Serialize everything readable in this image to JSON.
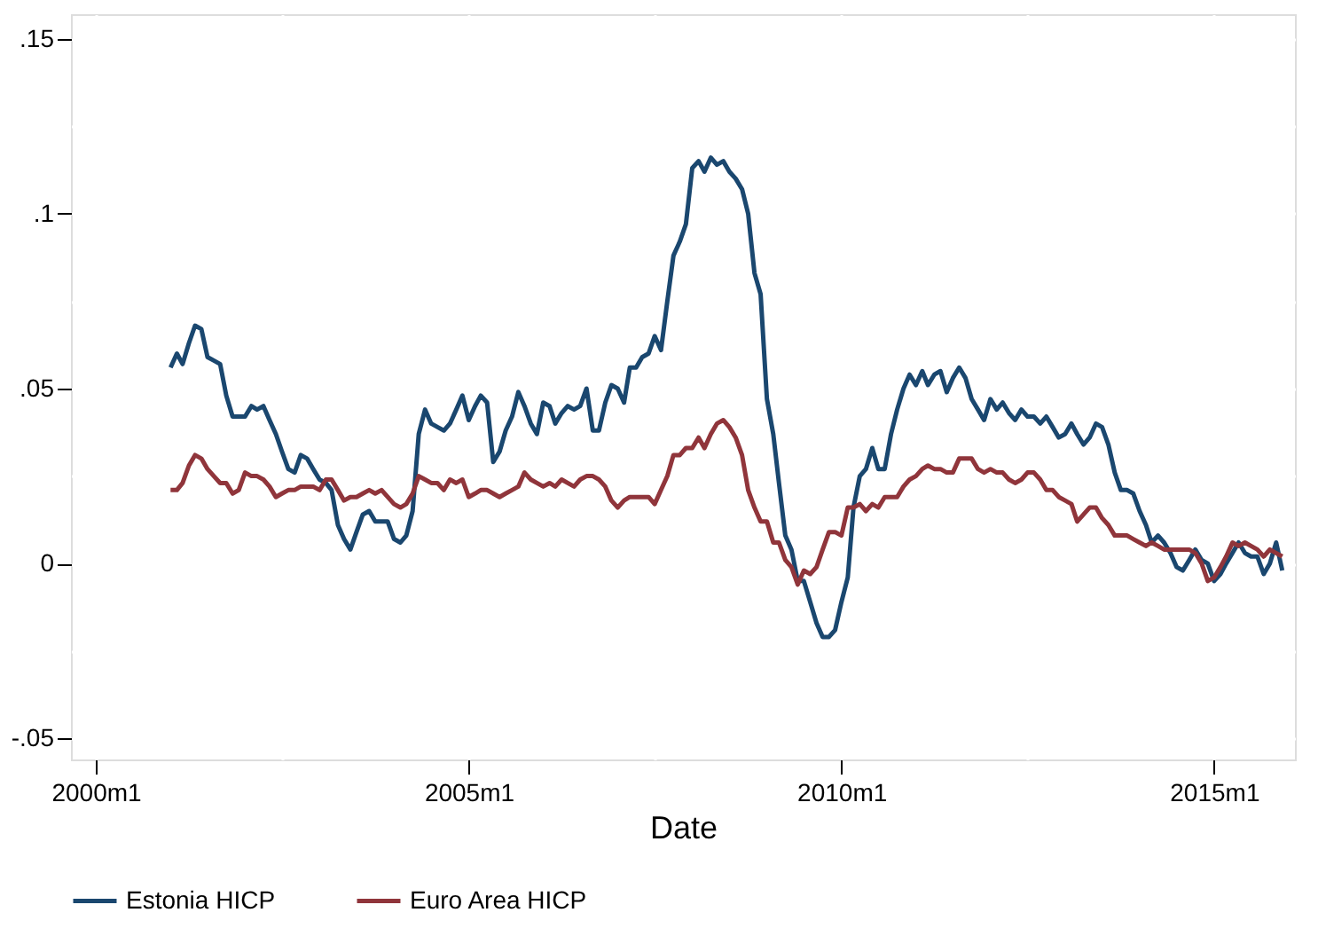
{
  "chart_data": {
    "type": "line",
    "xlabel": "Date",
    "grid": true,
    "legend": "bottom",
    "x": [
      "2001-01",
      "2001-02",
      "2001-03",
      "2001-04",
      "2001-05",
      "2001-06",
      "2001-07",
      "2001-08",
      "2001-09",
      "2001-10",
      "2001-11",
      "2001-12",
      "2002-01",
      "2002-02",
      "2002-03",
      "2002-04",
      "2002-05",
      "2002-06",
      "2002-07",
      "2002-08",
      "2002-09",
      "2002-10",
      "2002-11",
      "2002-12",
      "2003-01",
      "2003-02",
      "2003-03",
      "2003-04",
      "2003-05",
      "2003-06",
      "2003-07",
      "2003-08",
      "2003-09",
      "2003-10",
      "2003-11",
      "2003-12",
      "2004-01",
      "2004-02",
      "2004-03",
      "2004-04",
      "2004-05",
      "2004-06",
      "2004-07",
      "2004-08",
      "2004-09",
      "2004-10",
      "2004-11",
      "2004-12",
      "2005-01",
      "2005-02",
      "2005-03",
      "2005-04",
      "2005-05",
      "2005-06",
      "2005-07",
      "2005-08",
      "2005-09",
      "2005-10",
      "2005-11",
      "2005-12",
      "2006-01",
      "2006-02",
      "2006-03",
      "2006-04",
      "2006-05",
      "2006-06",
      "2006-07",
      "2006-08",
      "2006-09",
      "2006-10",
      "2006-11",
      "2006-12",
      "2007-01",
      "2007-02",
      "2007-03",
      "2007-04",
      "2007-05",
      "2007-06",
      "2007-07",
      "2007-08",
      "2007-09",
      "2007-10",
      "2007-11",
      "2007-12",
      "2008-01",
      "2008-02",
      "2008-03",
      "2008-04",
      "2008-05",
      "2008-06",
      "2008-07",
      "2008-08",
      "2008-09",
      "2008-10",
      "2008-11",
      "2008-12",
      "2009-01",
      "2009-02",
      "2009-03",
      "2009-04",
      "2009-05",
      "2009-06",
      "2009-07",
      "2009-08",
      "2009-09",
      "2009-10",
      "2009-11",
      "2009-12",
      "2010-01",
      "2010-02",
      "2010-03",
      "2010-04",
      "2010-05",
      "2010-06",
      "2010-07",
      "2010-08",
      "2010-09",
      "2010-10",
      "2010-11",
      "2010-12",
      "2011-01",
      "2011-02",
      "2011-03",
      "2011-04",
      "2011-05",
      "2011-06",
      "2011-07",
      "2011-08",
      "2011-09",
      "2011-10",
      "2011-11",
      "2011-12",
      "2012-01",
      "2012-02",
      "2012-03",
      "2012-04",
      "2012-05",
      "2012-06",
      "2012-07",
      "2012-08",
      "2012-09",
      "2012-10",
      "2012-11",
      "2012-12",
      "2013-01",
      "2013-02",
      "2013-03",
      "2013-04",
      "2013-05",
      "2013-06",
      "2013-07",
      "2013-08",
      "2013-09",
      "2013-10",
      "2013-11",
      "2013-12",
      "2014-01",
      "2014-02",
      "2014-03",
      "2014-04",
      "2014-05",
      "2014-06",
      "2014-07",
      "2014-08",
      "2014-09",
      "2014-10",
      "2014-11",
      "2014-12",
      "2015-01",
      "2015-02",
      "2015-03",
      "2015-04",
      "2015-05",
      "2015-06",
      "2015-07",
      "2015-08",
      "2015-09",
      "2015-10",
      "2015-11",
      "2015-12"
    ],
    "xlim": [
      "1999-09",
      "2016-02"
    ],
    "xticks": [
      {
        "value": "2000-01",
        "label": "2000m1"
      },
      {
        "value": "2002-07",
        "label": null
      },
      {
        "value": "2005-01",
        "label": "2005m1"
      },
      {
        "value": "2007-07",
        "label": null
      },
      {
        "value": "2010-01",
        "label": "2010m1"
      },
      {
        "value": "2012-07",
        "label": null
      },
      {
        "value": "2015-01",
        "label": "2015m1"
      }
    ],
    "ylim": [
      -0.056,
      0.157
    ],
    "yticks": [
      {
        "value": -0.05,
        "label": "-.05"
      },
      {
        "value": -0.025,
        "label": null
      },
      {
        "value": 0,
        "label": "0"
      },
      {
        "value": 0.025,
        "label": null
      },
      {
        "value": 0.05,
        "label": ".05"
      },
      {
        "value": 0.075,
        "label": null
      },
      {
        "value": 0.1,
        "label": ".1"
      },
      {
        "value": 0.125,
        "label": null
      },
      {
        "value": 0.15,
        "label": ".15"
      }
    ],
    "series": [
      {
        "name": "Estonia HICP",
        "color": "#1a476f",
        "values": [
          0.056,
          0.06,
          0.057,
          0.063,
          0.068,
          0.067,
          0.059,
          0.058,
          0.057,
          0.048,
          0.042,
          0.042,
          0.042,
          0.045,
          0.044,
          0.045,
          0.041,
          0.037,
          0.032,
          0.027,
          0.026,
          0.031,
          0.03,
          0.027,
          0.024,
          0.023,
          0.021,
          0.011,
          0.007,
          0.004,
          0.009,
          0.014,
          0.015,
          0.012,
          0.012,
          0.012,
          0.007,
          0.006,
          0.008,
          0.015,
          0.037,
          0.044,
          0.04,
          0.039,
          0.038,
          0.04,
          0.044,
          0.048,
          0.041,
          0.045,
          0.048,
          0.046,
          0.029,
          0.032,
          0.038,
          0.042,
          0.049,
          0.045,
          0.04,
          0.037,
          0.046,
          0.045,
          0.04,
          0.043,
          0.045,
          0.044,
          0.045,
          0.05,
          0.038,
          0.038,
          0.046,
          0.051,
          0.05,
          0.046,
          0.056,
          0.056,
          0.059,
          0.06,
          0.065,
          0.061,
          0.075,
          0.088,
          0.092,
          0.097,
          0.113,
          0.115,
          0.112,
          0.116,
          0.114,
          0.115,
          0.112,
          0.11,
          0.107,
          0.1,
          0.083,
          0.077,
          0.047,
          0.037,
          0.023,
          0.008,
          0.004,
          -0.005,
          -0.005,
          -0.011,
          -0.017,
          -0.021,
          -0.021,
          -0.019,
          -0.011,
          -0.004,
          0.016,
          0.025,
          0.027,
          0.033,
          0.027,
          0.027,
          0.037,
          0.044,
          0.05,
          0.054,
          0.051,
          0.055,
          0.051,
          0.054,
          0.055,
          0.049,
          0.053,
          0.056,
          0.053,
          0.047,
          0.044,
          0.041,
          0.047,
          0.044,
          0.046,
          0.043,
          0.041,
          0.044,
          0.042,
          0.042,
          0.04,
          0.042,
          0.039,
          0.036,
          0.037,
          0.04,
          0.037,
          0.034,
          0.036,
          0.04,
          0.039,
          0.034,
          0.026,
          0.021,
          0.021,
          0.02,
          0.015,
          0.011,
          0.006,
          0.008,
          0.006,
          0.003,
          -0.001,
          -0.002,
          0.001,
          0.004,
          0.001,
          0.0,
          -0.005,
          -0.003,
          0.0,
          0.003,
          0.006,
          0.003,
          0.002,
          0.002,
          -0.003,
          0.0,
          0.006,
          -0.002
        ]
      },
      {
        "name": "Euro Area HICP",
        "color": "#90353b",
        "values": [
          0.021,
          0.021,
          0.023,
          0.028,
          0.031,
          0.03,
          0.027,
          0.025,
          0.023,
          0.023,
          0.02,
          0.021,
          0.026,
          0.025,
          0.025,
          0.024,
          0.022,
          0.019,
          0.02,
          0.021,
          0.021,
          0.022,
          0.022,
          0.022,
          0.021,
          0.024,
          0.024,
          0.021,
          0.018,
          0.019,
          0.019,
          0.02,
          0.021,
          0.02,
          0.021,
          0.019,
          0.017,
          0.016,
          0.017,
          0.02,
          0.025,
          0.024,
          0.023,
          0.023,
          0.021,
          0.024,
          0.023,
          0.024,
          0.019,
          0.02,
          0.021,
          0.021,
          0.02,
          0.019,
          0.02,
          0.021,
          0.022,
          0.026,
          0.024,
          0.023,
          0.022,
          0.023,
          0.022,
          0.024,
          0.023,
          0.022,
          0.024,
          0.025,
          0.025,
          0.024,
          0.022,
          0.018,
          0.016,
          0.018,
          0.019,
          0.019,
          0.019,
          0.019,
          0.017,
          0.021,
          0.025,
          0.031,
          0.031,
          0.033,
          0.033,
          0.036,
          0.033,
          0.037,
          0.04,
          0.041,
          0.039,
          0.036,
          0.031,
          0.021,
          0.016,
          0.012,
          0.012,
          0.006,
          0.006,
          0.001,
          -0.001,
          -0.006,
          -0.002,
          -0.003,
          -0.001,
          0.004,
          0.009,
          0.009,
          0.008,
          0.016,
          0.016,
          0.017,
          0.015,
          0.017,
          0.016,
          0.019,
          0.019,
          0.019,
          0.022,
          0.024,
          0.025,
          0.027,
          0.028,
          0.027,
          0.027,
          0.026,
          0.026,
          0.03,
          0.03,
          0.03,
          0.027,
          0.026,
          0.027,
          0.026,
          0.026,
          0.024,
          0.023,
          0.024,
          0.026,
          0.026,
          0.024,
          0.021,
          0.021,
          0.019,
          0.018,
          0.017,
          0.012,
          0.014,
          0.016,
          0.016,
          0.013,
          0.011,
          0.008,
          0.008,
          0.008,
          0.007,
          0.006,
          0.005,
          0.006,
          0.005,
          0.004,
          0.004,
          0.004,
          0.004,
          0.004,
          0.003,
          0.0,
          -0.005,
          -0.004,
          -0.001,
          0.002,
          0.006,
          0.005,
          0.006,
          0.005,
          0.004,
          0.002,
          0.004,
          0.003,
          0.002
        ]
      }
    ]
  }
}
